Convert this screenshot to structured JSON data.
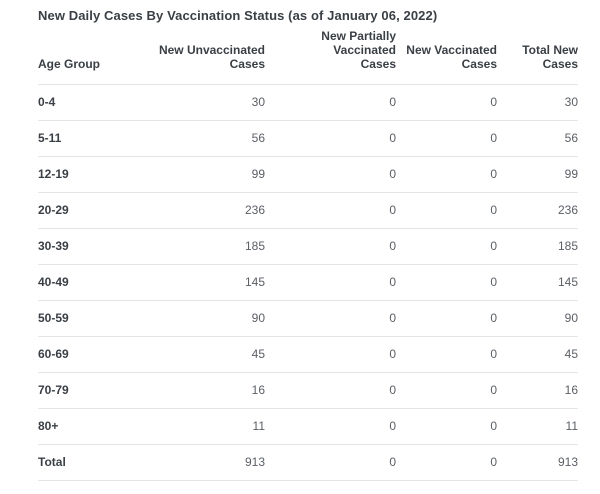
{
  "panel": {
    "title": "New Daily Cases By Vaccination Status (as of January 06, 2022)"
  },
  "colors": {
    "background": "#ffffff",
    "title_text": "#3a3f45",
    "header_text": "#3a3f45",
    "label_text": "#3a3f45",
    "value_text": "#5b6066",
    "divider": "#e3e4e6"
  },
  "table": {
    "columns": [
      {
        "line1": "",
        "line2": "Age Group"
      },
      {
        "line1": "New Unvaccinated",
        "line2": "Cases"
      },
      {
        "line1": "New Partially Vaccinated",
        "line2": "Cases"
      },
      {
        "line1": "New Vaccinated",
        "line2": "Cases"
      },
      {
        "line1": "Total New",
        "line2": "Cases"
      }
    ],
    "rows": [
      {
        "cells": [
          "0-4",
          "30",
          "0",
          "0",
          "30"
        ]
      },
      {
        "cells": [
          "5-11",
          "56",
          "0",
          "0",
          "56"
        ]
      },
      {
        "cells": [
          "12-19",
          "99",
          "0",
          "0",
          "99"
        ]
      },
      {
        "cells": [
          "20-29",
          "236",
          "0",
          "0",
          "236"
        ]
      },
      {
        "cells": [
          "30-39",
          "185",
          "0",
          "0",
          "185"
        ]
      },
      {
        "cells": [
          "40-49",
          "145",
          "0",
          "0",
          "145"
        ]
      },
      {
        "cells": [
          "50-59",
          "90",
          "0",
          "0",
          "90"
        ]
      },
      {
        "cells": [
          "60-69",
          "45",
          "0",
          "0",
          "45"
        ]
      },
      {
        "cells": [
          "70-79",
          "16",
          "0",
          "0",
          "16"
        ]
      },
      {
        "cells": [
          "80+",
          "11",
          "0",
          "0",
          "11"
        ]
      },
      {
        "cells": [
          "Total",
          "913",
          "0",
          "0",
          "913"
        ]
      }
    ]
  },
  "chart_data": {
    "type": "table",
    "title": "New Daily Cases By Vaccination Status (as of January 06, 2022)",
    "columns": [
      "Age Group",
      "New Unvaccinated Cases",
      "New Partially Vaccinated Cases",
      "New Vaccinated Cases",
      "Total New Cases"
    ],
    "rows": [
      [
        "0-4",
        30,
        0,
        0,
        30
      ],
      [
        "5-11",
        56,
        0,
        0,
        56
      ],
      [
        "12-19",
        99,
        0,
        0,
        99
      ],
      [
        "20-29",
        236,
        0,
        0,
        236
      ],
      [
        "30-39",
        185,
        0,
        0,
        185
      ],
      [
        "40-49",
        145,
        0,
        0,
        145
      ],
      [
        "50-59",
        90,
        0,
        0,
        90
      ],
      [
        "60-69",
        45,
        0,
        0,
        45
      ],
      [
        "70-79",
        16,
        0,
        0,
        16
      ],
      [
        "80+",
        11,
        0,
        0,
        11
      ],
      [
        "Total",
        913,
        0,
        0,
        913
      ]
    ],
    "notes": "All numeric columns right-aligned; first column left-aligned bold; last row is column totals."
  }
}
